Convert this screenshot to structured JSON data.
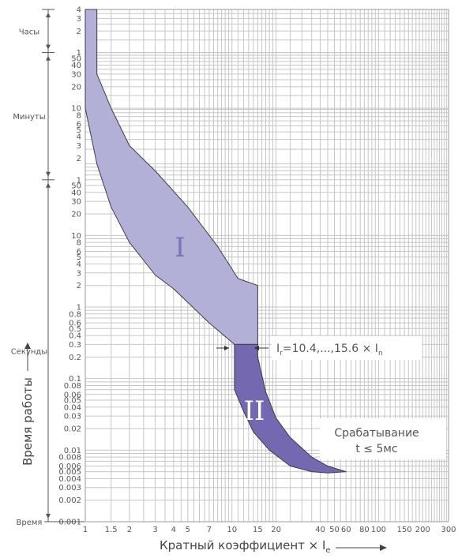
{
  "chart_data": {
    "type": "area",
    "title": "",
    "xlabel_prefix": "Кратный коэффициент × I",
    "xlabel_sub": "e",
    "ylabel": "Время работы",
    "x_scale": "log",
    "y_scale": "log",
    "xlim": [
      1,
      300
    ],
    "ylim_seconds": [
      0.001,
      14400
    ],
    "grid": true,
    "x_ticks": [
      {
        "v": 1,
        "l": "1"
      },
      {
        "v": 1.5,
        "l": "1.5"
      },
      {
        "v": 2,
        "l": "2"
      },
      {
        "v": 3,
        "l": "3"
      },
      {
        "v": 4,
        "l": "4"
      },
      {
        "v": 5,
        "l": "5"
      },
      {
        "v": 7,
        "l": "7"
      },
      {
        "v": 10,
        "l": "10"
      },
      {
        "v": 15,
        "l": "15"
      },
      {
        "v": 20,
        "l": "20"
      },
      {
        "v": 40,
        "l": "40"
      },
      {
        "v": 50,
        "l": "50"
      },
      {
        "v": 60,
        "l": "60"
      },
      {
        "v": 80,
        "l": "80"
      },
      {
        "v": 100,
        "l": "100"
      },
      {
        "v": 150,
        "l": "150"
      },
      {
        "v": 200,
        "l": "200"
      },
      {
        "v": 300,
        "l": "300"
      }
    ],
    "y_ticks": [
      {
        "v": 14400,
        "l": "4"
      },
      {
        "v": 10800,
        "l": "3"
      },
      {
        "v": 7200,
        "l": "2"
      },
      {
        "v": 3600,
        "l": "1"
      },
      {
        "v": 3000,
        "l": "50"
      },
      {
        "v": 2400,
        "l": "40"
      },
      {
        "v": 1800,
        "l": "30"
      },
      {
        "v": 1200,
        "l": "20"
      },
      {
        "v": 600,
        "l": "10"
      },
      {
        "v": 480,
        "l": "8"
      },
      {
        "v": 360,
        "l": "6"
      },
      {
        "v": 300,
        "l": "5"
      },
      {
        "v": 240,
        "l": "4"
      },
      {
        "v": 180,
        "l": "3"
      },
      {
        "v": 120,
        "l": "2"
      },
      {
        "v": 60,
        "l": "1"
      },
      {
        "v": 50,
        "l": "50"
      },
      {
        "v": 40,
        "l": "40"
      },
      {
        "v": 30,
        "l": "30"
      },
      {
        "v": 20,
        "l": "20"
      },
      {
        "v": 10,
        "l": "10"
      },
      {
        "v": 8,
        "l": "8"
      },
      {
        "v": 6,
        "l": "6"
      },
      {
        "v": 5,
        "l": "5"
      },
      {
        "v": 4,
        "l": "4"
      },
      {
        "v": 3,
        "l": "3"
      },
      {
        "v": 2,
        "l": "2"
      },
      {
        "v": 1,
        "l": "1"
      },
      {
        "v": 0.8,
        "l": "0.8"
      },
      {
        "v": 0.6,
        "l": "0.6"
      },
      {
        "v": 0.5,
        "l": "0.5"
      },
      {
        "v": 0.4,
        "l": "0.4"
      },
      {
        "v": 0.3,
        "l": "0.3"
      },
      {
        "v": 0.2,
        "l": "0.2"
      },
      {
        "v": 0.1,
        "l": "0.1"
      },
      {
        "v": 0.08,
        "l": "0.08"
      },
      {
        "v": 0.06,
        "l": "0.06"
      },
      {
        "v": 0.05,
        "l": "0.05"
      },
      {
        "v": 0.04,
        "l": "0.04"
      },
      {
        "v": 0.03,
        "l": "0.03"
      },
      {
        "v": 0.02,
        "l": "0.02"
      },
      {
        "v": 0.01,
        "l": "0.01"
      },
      {
        "v": 0.008,
        "l": "0.008"
      },
      {
        "v": 0.006,
        "l": "0.006"
      },
      {
        "v": 0.005,
        "l": "0.005"
      },
      {
        "v": 0.004,
        "l": "0.004"
      },
      {
        "v": 0.003,
        "l": "0.003"
      },
      {
        "v": 0.002,
        "l": "0.002"
      },
      {
        "v": 0.001,
        "l": "0.001"
      }
    ],
    "time_bands": [
      {
        "label": "Часы",
        "from": 3600,
        "to": 14400
      },
      {
        "label": "Минуты",
        "from": 60,
        "to": 3600
      },
      {
        "label": "Секунды",
        "from": 0.001,
        "to": 60
      },
      {
        "label": "Время",
        "at": 0.001
      }
    ],
    "regions": [
      {
        "name": "I",
        "color": "#b3b0d8",
        "points": [
          [
            1.0,
            14400
          ],
          [
            1.2,
            14400
          ],
          [
            1.2,
            1800
          ],
          [
            1.5,
            600
          ],
          [
            2,
            180
          ],
          [
            3,
            80
          ],
          [
            5,
            25
          ],
          [
            8,
            7
          ],
          [
            11,
            2.5
          ],
          [
            15,
            2
          ],
          [
            15,
            0.3
          ],
          [
            10.4,
            0.3
          ],
          [
            7,
            0.6
          ],
          [
            4,
            1.8
          ],
          [
            3,
            2.8
          ],
          [
            2,
            8
          ],
          [
            1.5,
            25
          ],
          [
            1.2,
            100
          ],
          [
            1.0,
            600
          ]
        ]
      },
      {
        "name": "II",
        "color": "#7469b0",
        "points": [
          [
            10.4,
            0.3
          ],
          [
            15,
            0.3
          ],
          [
            15,
            0.2
          ],
          [
            17,
            0.065
          ],
          [
            20,
            0.028
          ],
          [
            25,
            0.015
          ],
          [
            35,
            0.008
          ],
          [
            45,
            0.006
          ],
          [
            60,
            0.005
          ],
          [
            45,
            0.0048
          ],
          [
            35,
            0.005
          ],
          [
            25,
            0.006
          ],
          [
            18,
            0.01
          ],
          [
            14,
            0.018
          ],
          [
            12,
            0.035
          ],
          [
            10.4,
            0.07
          ]
        ]
      }
    ],
    "annotations": {
      "ir_label_prefix": "I",
      "ir_label_sub": "r",
      "ir_label_main": "=10.4,...,15.6 × I",
      "ir_label_sub2": "n",
      "ir_range": [
        10.4,
        15.6
      ],
      "ir_time": 0.3,
      "trip_line1": "Срабатывание",
      "trip_line2": "t ≤ 5мс"
    },
    "colors": {
      "region_I": "#b3b0d8",
      "region_II": "#7469b0",
      "grid": "#c6c6c6",
      "outline": "#3d3d4a"
    }
  }
}
